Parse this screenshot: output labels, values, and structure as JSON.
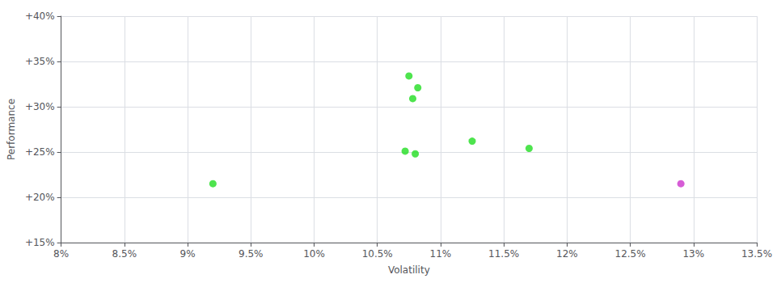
{
  "chart_data": {
    "type": "scatter",
    "xlabel": "Volatility",
    "ylabel": "Performance",
    "xlim": [
      0.08,
      0.135
    ],
    "ylim": [
      0.15,
      0.4
    ],
    "xticks": [
      {
        "value": 0.08,
        "label": "8%"
      },
      {
        "value": 0.085,
        "label": "8.5%"
      },
      {
        "value": 0.09,
        "label": "9%"
      },
      {
        "value": 0.095,
        "label": "9.5%"
      },
      {
        "value": 0.1,
        "label": "10%"
      },
      {
        "value": 0.105,
        "label": "10.5%"
      },
      {
        "value": 0.11,
        "label": "11%"
      },
      {
        "value": 0.115,
        "label": "11.5%"
      },
      {
        "value": 0.12,
        "label": "12%"
      },
      {
        "value": 0.125,
        "label": "12.5%"
      },
      {
        "value": 0.13,
        "label": "13%"
      },
      {
        "value": 0.135,
        "label": "13.5%"
      }
    ],
    "yticks": [
      {
        "value": 0.15,
        "label": "+15%"
      },
      {
        "value": 0.2,
        "label": "+20%"
      },
      {
        "value": 0.25,
        "label": "+25%"
      },
      {
        "value": 0.3,
        "label": "+30%"
      },
      {
        "value": 0.35,
        "label": "+35%"
      },
      {
        "value": 0.4,
        "label": "+40%"
      }
    ],
    "grid": true,
    "series": [
      {
        "color": "#22dd22",
        "values": [
          [
            0.1075,
            0.334
          ],
          [
            0.1082,
            0.321
          ],
          [
            0.1078,
            0.309
          ],
          [
            0.1072,
            0.251
          ],
          [
            0.108,
            0.248
          ],
          [
            0.1125,
            0.262
          ],
          [
            0.117,
            0.254
          ],
          [
            0.092,
            0.215
          ]
        ]
      },
      {
        "color": "#cc33cc",
        "values": [
          [
            0.129,
            0.215
          ]
        ]
      }
    ]
  }
}
